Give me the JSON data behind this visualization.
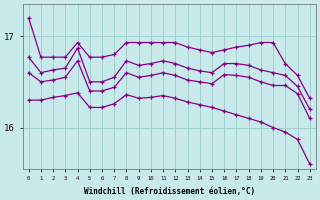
{
  "bg_color": "#c8eaea",
  "grid_color": "#a0d0d0",
  "line_color": "#880088",
  "xlabel": "Windchill (Refroidissement éolien,°C)",
  "yticks": [
    16,
    17
  ],
  "ylim": [
    15.55,
    17.35
  ],
  "xlim": [
    -0.5,
    23.5
  ],
  "lines": [
    [
      17.2,
      16.77,
      16.77,
      16.77,
      16.93,
      16.77,
      16.77,
      16.8,
      16.93,
      16.93,
      16.93,
      16.93,
      16.93,
      16.88,
      16.85,
      16.82,
      16.85,
      16.88,
      16.9,
      16.93,
      16.93,
      16.7,
      16.57,
      16.32
    ],
    [
      16.77,
      16.6,
      16.63,
      16.65,
      16.87,
      16.5,
      16.5,
      16.55,
      16.73,
      16.68,
      16.7,
      16.73,
      16.7,
      16.65,
      16.62,
      16.6,
      16.7,
      16.7,
      16.68,
      16.63,
      16.6,
      16.57,
      16.45,
      16.2
    ],
    [
      16.6,
      16.5,
      16.52,
      16.55,
      16.73,
      16.4,
      16.4,
      16.44,
      16.6,
      16.55,
      16.57,
      16.6,
      16.57,
      16.52,
      16.5,
      16.48,
      16.58,
      16.57,
      16.55,
      16.5,
      16.46,
      16.46,
      16.37,
      16.1
    ],
    [
      16.3,
      16.3,
      16.33,
      16.35,
      16.38,
      16.22,
      16.22,
      16.26,
      16.36,
      16.32,
      16.33,
      16.35,
      16.32,
      16.28,
      16.25,
      16.22,
      16.18,
      16.14,
      16.1,
      16.06,
      16.0,
      15.95,
      15.87,
      15.6
    ]
  ]
}
